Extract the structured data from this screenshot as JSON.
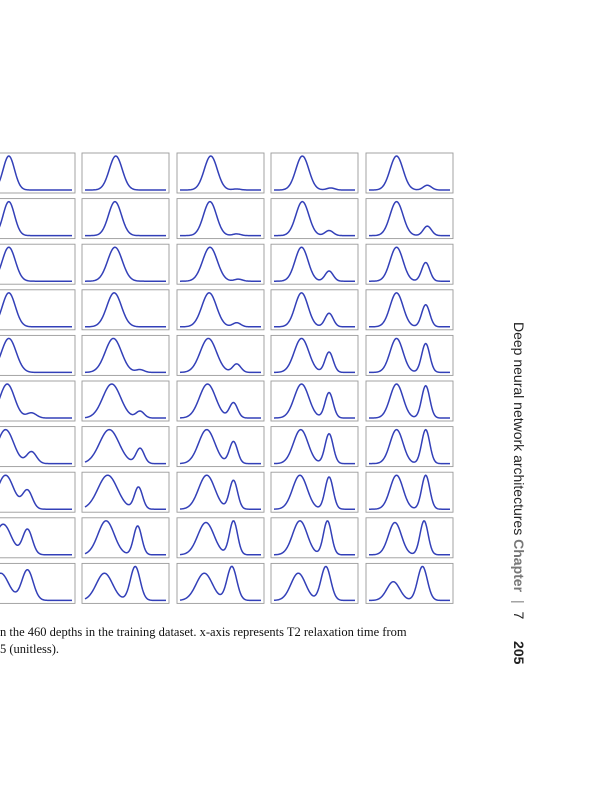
{
  "caption": {
    "line1": "n the 460 depths in the training dataset. x-axis represents T2 relaxation time from",
    "line2": "5 (unitless)."
  },
  "running_head": {
    "title": "Deep neural network architectures",
    "chapter_label": "Chapter",
    "separator": "|",
    "chapter_number": "7",
    "page_number": "205"
  },
  "figure": {
    "line_color": "#3340b8",
    "frame_color": "#9a9a9a",
    "columns": 5,
    "rows": 10
  },
  "chart_data": {
    "type": "line",
    "panel_grid": "10 rows x 5 columns of small T2 distribution plots",
    "curve_model": "each panel: main peak (center c1, amplitude a1, width w1) plus optional second peak (c2, a2, w2); x in 0-1 panel units",
    "panels": [
      [
        {
          "c1": 0.22,
          "a1": 1.0,
          "w1": 0.07,
          "c2": 0.0,
          "a2": 0.0,
          "w2": 0.05
        },
        {
          "c1": 0.38,
          "a1": 1.0,
          "w1": 0.08,
          "c2": 0.0,
          "a2": 0.0,
          "w2": 0.05
        },
        {
          "c1": 0.38,
          "a1": 1.0,
          "w1": 0.08,
          "c2": 0.7,
          "a2": 0.03,
          "w2": 0.05
        },
        {
          "c1": 0.35,
          "a1": 1.0,
          "w1": 0.08,
          "c2": 0.7,
          "a2": 0.06,
          "w2": 0.05
        },
        {
          "c1": 0.34,
          "a1": 1.0,
          "w1": 0.08,
          "c2": 0.72,
          "a2": 0.14,
          "w2": 0.05
        }
      ],
      [
        {
          "c1": 0.22,
          "a1": 1.0,
          "w1": 0.07,
          "c2": 0.0,
          "a2": 0.0,
          "w2": 0.05
        },
        {
          "c1": 0.37,
          "a1": 1.0,
          "w1": 0.08,
          "c2": 0.0,
          "a2": 0.0,
          "w2": 0.05
        },
        {
          "c1": 0.37,
          "a1": 1.0,
          "w1": 0.08,
          "c2": 0.7,
          "a2": 0.05,
          "w2": 0.05
        },
        {
          "c1": 0.35,
          "a1": 1.0,
          "w1": 0.08,
          "c2": 0.68,
          "a2": 0.15,
          "w2": 0.05
        },
        {
          "c1": 0.34,
          "a1": 1.0,
          "w1": 0.08,
          "c2": 0.72,
          "a2": 0.28,
          "w2": 0.05
        }
      ],
      [
        {
          "c1": 0.22,
          "a1": 1.0,
          "w1": 0.08,
          "c2": 0.0,
          "a2": 0.0,
          "w2": 0.05
        },
        {
          "c1": 0.37,
          "a1": 1.0,
          "w1": 0.09,
          "c2": 0.0,
          "a2": 0.0,
          "w2": 0.05
        },
        {
          "c1": 0.37,
          "a1": 1.0,
          "w1": 0.09,
          "c2": 0.72,
          "a2": 0.06,
          "w2": 0.05
        },
        {
          "c1": 0.34,
          "a1": 1.0,
          "w1": 0.08,
          "c2": 0.68,
          "a2": 0.3,
          "w2": 0.05
        },
        {
          "c1": 0.34,
          "a1": 1.0,
          "w1": 0.08,
          "c2": 0.7,
          "a2": 0.55,
          "w2": 0.05
        }
      ],
      [
        {
          "c1": 0.22,
          "a1": 1.0,
          "w1": 0.08,
          "c2": 0.0,
          "a2": 0.0,
          "w2": 0.05
        },
        {
          "c1": 0.36,
          "a1": 1.0,
          "w1": 0.09,
          "c2": 0.0,
          "a2": 0.0,
          "w2": 0.05
        },
        {
          "c1": 0.36,
          "a1": 1.0,
          "w1": 0.09,
          "c2": 0.7,
          "a2": 0.12,
          "w2": 0.05
        },
        {
          "c1": 0.34,
          "a1": 1.0,
          "w1": 0.08,
          "c2": 0.68,
          "a2": 0.4,
          "w2": 0.05
        },
        {
          "c1": 0.34,
          "a1": 1.0,
          "w1": 0.08,
          "c2": 0.7,
          "a2": 0.65,
          "w2": 0.05
        }
      ],
      [
        {
          "c1": 0.22,
          "a1": 1.0,
          "w1": 0.09,
          "c2": 0.0,
          "a2": 0.0,
          "w2": 0.05
        },
        {
          "c1": 0.35,
          "a1": 1.0,
          "w1": 0.1,
          "c2": 0.68,
          "a2": 0.08,
          "w2": 0.05
        },
        {
          "c1": 0.35,
          "a1": 1.0,
          "w1": 0.1,
          "c2": 0.7,
          "a2": 0.25,
          "w2": 0.05
        },
        {
          "c1": 0.34,
          "a1": 1.0,
          "w1": 0.09,
          "c2": 0.68,
          "a2": 0.6,
          "w2": 0.05
        },
        {
          "c1": 0.34,
          "a1": 1.0,
          "w1": 0.08,
          "c2": 0.7,
          "a2": 0.85,
          "w2": 0.05
        }
      ],
      [
        {
          "c1": 0.2,
          "a1": 1.0,
          "w1": 0.09,
          "c2": 0.5,
          "a2": 0.15,
          "w2": 0.06
        },
        {
          "c1": 0.33,
          "a1": 1.0,
          "w1": 0.11,
          "c2": 0.68,
          "a2": 0.2,
          "w2": 0.05
        },
        {
          "c1": 0.34,
          "a1": 1.0,
          "w1": 0.1,
          "c2": 0.66,
          "a2": 0.45,
          "w2": 0.05
        },
        {
          "c1": 0.34,
          "a1": 1.0,
          "w1": 0.09,
          "c2": 0.68,
          "a2": 0.75,
          "w2": 0.05
        },
        {
          "c1": 0.34,
          "a1": 1.0,
          "w1": 0.08,
          "c2": 0.7,
          "a2": 0.95,
          "w2": 0.05
        }
      ],
      [
        {
          "c1": 0.18,
          "a1": 1.0,
          "w1": 0.1,
          "c2": 0.5,
          "a2": 0.35,
          "w2": 0.06
        },
        {
          "c1": 0.3,
          "a1": 1.0,
          "w1": 0.12,
          "c2": 0.68,
          "a2": 0.45,
          "w2": 0.05
        },
        {
          "c1": 0.33,
          "a1": 1.0,
          "w1": 0.1,
          "c2": 0.66,
          "a2": 0.65,
          "w2": 0.05
        },
        {
          "c1": 0.33,
          "a1": 1.0,
          "w1": 0.09,
          "c2": 0.68,
          "a2": 0.88,
          "w2": 0.05
        },
        {
          "c1": 0.34,
          "a1": 1.0,
          "w1": 0.08,
          "c2": 0.7,
          "a2": 1.0,
          "w2": 0.05
        }
      ],
      [
        {
          "c1": 0.18,
          "a1": 1.0,
          "w1": 0.1,
          "c2": 0.45,
          "a2": 0.55,
          "w2": 0.06
        },
        {
          "c1": 0.28,
          "a1": 1.0,
          "w1": 0.12,
          "c2": 0.66,
          "a2": 0.65,
          "w2": 0.05
        },
        {
          "c1": 0.33,
          "a1": 1.0,
          "w1": 0.1,
          "c2": 0.66,
          "a2": 0.85,
          "w2": 0.05
        },
        {
          "c1": 0.32,
          "a1": 1.0,
          "w1": 0.09,
          "c2": 0.68,
          "a2": 0.95,
          "w2": 0.05
        },
        {
          "c1": 0.34,
          "a1": 1.0,
          "w1": 0.08,
          "c2": 0.7,
          "a2": 1.0,
          "w2": 0.05
        }
      ],
      [
        {
          "c1": 0.15,
          "a1": 0.9,
          "w1": 0.1,
          "c2": 0.45,
          "a2": 0.75,
          "w2": 0.06
        },
        {
          "c1": 0.26,
          "a1": 1.0,
          "w1": 0.1,
          "c2": 0.65,
          "a2": 0.85,
          "w2": 0.05
        },
        {
          "c1": 0.32,
          "a1": 0.95,
          "w1": 0.1,
          "c2": 0.66,
          "a2": 1.0,
          "w2": 0.05
        },
        {
          "c1": 0.32,
          "a1": 1.0,
          "w1": 0.09,
          "c2": 0.66,
          "a2": 1.0,
          "w2": 0.05
        },
        {
          "c1": 0.32,
          "a1": 0.95,
          "w1": 0.08,
          "c2": 0.68,
          "a2": 1.0,
          "w2": 0.05
        }
      ],
      [
        {
          "c1": 0.12,
          "a1": 0.8,
          "w1": 0.1,
          "c2": 0.45,
          "a2": 0.9,
          "w2": 0.07
        },
        {
          "c1": 0.24,
          "a1": 0.8,
          "w1": 0.1,
          "c2": 0.62,
          "a2": 1.0,
          "w2": 0.06
        },
        {
          "c1": 0.3,
          "a1": 0.8,
          "w1": 0.1,
          "c2": 0.64,
          "a2": 1.0,
          "w2": 0.06
        },
        {
          "c1": 0.3,
          "a1": 0.8,
          "w1": 0.09,
          "c2": 0.64,
          "a2": 1.0,
          "w2": 0.06
        },
        {
          "c1": 0.3,
          "a1": 0.55,
          "w1": 0.08,
          "c2": 0.66,
          "a2": 1.0,
          "w2": 0.06
        }
      ]
    ]
  }
}
